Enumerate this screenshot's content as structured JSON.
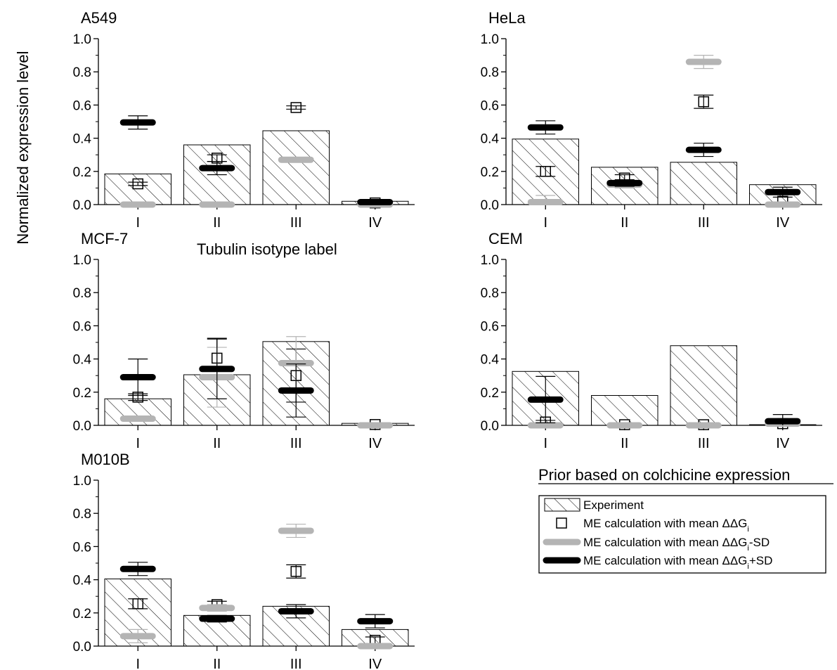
{
  "figure": {
    "ylabel": "Normalized expression level",
    "xlabel": "Tubulin isotype label",
    "legend_title": "Prior based on colchicine expression",
    "legend": [
      {
        "key": "experiment",
        "label": "Experiment"
      },
      {
        "key": "me_mean",
        "label": "ME calculation with mean ΔΔG",
        "sub": "i",
        "after": ""
      },
      {
        "key": "me_minus",
        "label": "ME calculation with mean ΔΔG",
        "sub": "i",
        "after": "-SD"
      },
      {
        "key": "me_plus",
        "label": "ME calculation with mean ΔΔG",
        "sub": "i",
        "after": "+SD"
      }
    ],
    "colors": {
      "bar": "#ffffff",
      "hatch": "#000000",
      "me_mean": "#000000",
      "me_minus": "#b4b4b4",
      "me_plus": "#000000"
    }
  },
  "chart_data": [
    {
      "type": "bar",
      "title": "A549",
      "categories": [
        "I",
        "II",
        "III",
        "IV"
      ],
      "yticks": [
        "0.0",
        "0.2",
        "0.4",
        "0.6",
        "0.8",
        "1.0"
      ],
      "ylim": [
        0,
        1
      ],
      "series": [
        {
          "name": "Experiment",
          "values": [
            0.185,
            0.36,
            0.445,
            0.02
          ]
        },
        {
          "name": "ME calculation with mean ΔΔGi",
          "values": [
            0.125,
            0.28,
            0.585,
            0.01
          ],
          "err": [
            0.01,
            0.02,
            0.01,
            0
          ]
        },
        {
          "name": "ME calculation with mean ΔΔGi-SD",
          "values": [
            0.0,
            0.0,
            0.27,
            0.0
          ],
          "err": [
            0,
            0,
            0,
            0
          ]
        },
        {
          "name": "ME calculation with mean ΔΔGi+SD",
          "values": [
            0.495,
            0.22,
            null,
            0.015
          ],
          "err": [
            0.04,
            0.04,
            0,
            0
          ]
        }
      ]
    },
    {
      "type": "bar",
      "title": "HeLa",
      "categories": [
        "I",
        "II",
        "III",
        "IV"
      ],
      "yticks": [
        "0.0",
        "0.2",
        "0.4",
        "0.6",
        "0.8",
        "1.0"
      ],
      "ylim": [
        0,
        1
      ],
      "series": [
        {
          "name": "Experiment",
          "values": [
            0.395,
            0.225,
            0.255,
            0.12
          ]
        },
        {
          "name": "ME calculation with mean ΔΔGi",
          "values": [
            0.2,
            0.16,
            0.62,
            0.02
          ],
          "err": [
            0.03,
            0.02,
            0.04,
            0
          ]
        },
        {
          "name": "ME calculation with mean ΔΔGi-SD",
          "values": [
            0.015,
            0.12,
            0.86,
            0.0
          ],
          "err": [
            0.04,
            0.02,
            0.04,
            0
          ]
        },
        {
          "name": "ME calculation with mean ΔΔGi+SD",
          "values": [
            0.465,
            0.13,
            0.33,
            0.075
          ],
          "err": [
            0.04,
            0.02,
            0.04,
            0.03
          ]
        }
      ]
    },
    {
      "type": "bar",
      "title": "MCF-7",
      "categories": [
        "I",
        "II",
        "III",
        "IV"
      ],
      "yticks": [
        "0.0",
        "0.2",
        "0.4",
        "0.6",
        "0.8",
        "1.0"
      ],
      "ylim": [
        0,
        1
      ],
      "series": [
        {
          "name": "Experiment",
          "values": [
            0.16,
            0.305,
            0.505,
            0.012
          ]
        },
        {
          "name": "ME calculation with mean ΔΔGi",
          "values": [
            0.17,
            0.405,
            0.3,
            0.005
          ],
          "err": [
            0.02,
            0.12,
            0.16,
            0
          ]
        },
        {
          "name": "ME calculation with mean ΔΔGi-SD",
          "values": [
            0.04,
            0.29,
            0.375,
            0.0
          ],
          "err": [
            0,
            0.18,
            0.16,
            0
          ]
        },
        {
          "name": "ME calculation with mean ΔΔGi+SD",
          "values": [
            0.29,
            0.34,
            0.21,
            null
          ],
          "err": [
            0.11,
            0.18,
            0.16,
            0
          ]
        }
      ]
    },
    {
      "type": "bar",
      "title": "CEM",
      "categories": [
        "I",
        "II",
        "III",
        "IV"
      ],
      "yticks": [
        "0.0",
        "0.2",
        "0.4",
        "0.6",
        "0.8",
        "1.0"
      ],
      "ylim": [
        0,
        1
      ],
      "series": [
        {
          "name": "Experiment",
          "values": [
            0.325,
            0.18,
            0.48,
            0.004
          ]
        },
        {
          "name": "ME calculation with mean ΔΔGi",
          "values": [
            0.02,
            0.004,
            0.004,
            0.01
          ],
          "err": [
            0.01,
            0.01,
            0.01,
            0
          ]
        },
        {
          "name": "ME calculation with mean ΔΔGi-SD",
          "values": [
            0.0,
            0.0,
            0.0,
            0.01
          ],
          "err": [
            0,
            0,
            0,
            0
          ]
        },
        {
          "name": "ME calculation with mean ΔΔGi+SD",
          "values": [
            0.155,
            null,
            null,
            0.025
          ],
          "err": [
            0.14,
            0,
            0,
            0.04
          ]
        }
      ]
    },
    {
      "type": "bar",
      "title": "M010B",
      "categories": [
        "I",
        "II",
        "III",
        "IV"
      ],
      "yticks": [
        "0.0",
        "0.2",
        "0.4",
        "0.6",
        "0.8",
        "1.0"
      ],
      "ylim": [
        0,
        1
      ],
      "series": [
        {
          "name": "Experiment",
          "values": [
            0.405,
            0.185,
            0.24,
            0.1
          ]
        },
        {
          "name": "ME calculation with mean ΔΔGi",
          "values": [
            0.255,
            0.25,
            0.45,
            0.035
          ],
          "err": [
            0.03,
            0.02,
            0.04,
            0.02
          ]
        },
        {
          "name": "ME calculation with mean ΔΔGi-SD",
          "values": [
            0.06,
            0.23,
            0.695,
            0.0
          ],
          "err": [
            0.04,
            0.02,
            0.04,
            0
          ]
        },
        {
          "name": "ME calculation with mean ΔΔGi+SD",
          "values": [
            0.465,
            0.165,
            0.21,
            0.15
          ],
          "err": [
            0.04,
            0.02,
            0.04,
            0.04
          ]
        }
      ]
    }
  ]
}
